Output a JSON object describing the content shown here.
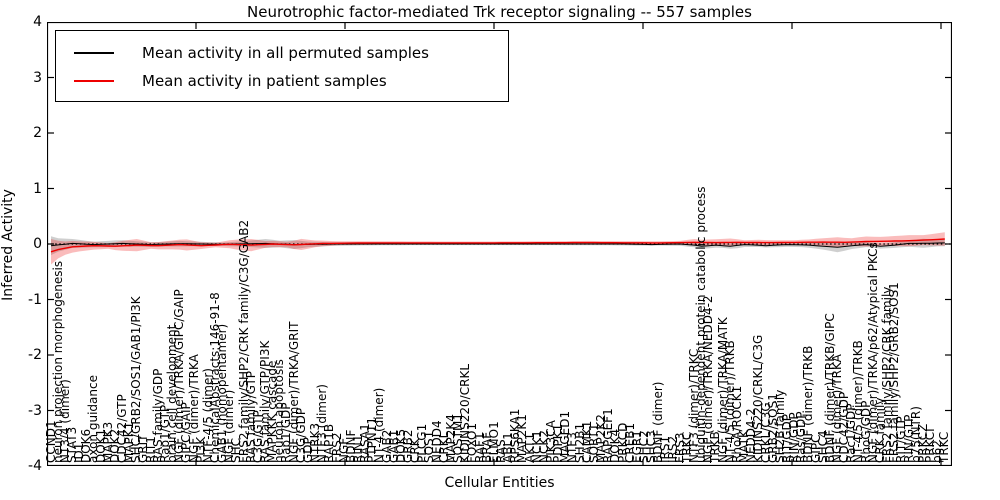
{
  "ui": {
    "title": "Neurotrophic factor-mediated Trk receptor signaling -- 557 samples",
    "xlabel": "Cellular Entities",
    "ylabel": "Inferred Activity"
  },
  "chart_data": {
    "type": "line",
    "title": "Neurotrophic factor-mediated Trk receptor signaling -- 557 samples",
    "samples_label": "557 samples",
    "xlabel": "Cellular Entities",
    "ylabel": "Inferred Activity",
    "ylim": [
      -4,
      4
    ],
    "yticks": [
      4,
      3,
      2,
      1,
      0,
      -1,
      -2,
      -3,
      -4
    ],
    "grid": false,
    "zero_line": "black dotted",
    "legend_position": "upper left",
    "x_categories": [
      "CCND1",
      "neuron projection morphogenesis",
      "NT3/4 (dimer)",
      "STAT3",
      "ID1",
      "DOK6",
      "axon guidance",
      "DOK1",
      "MAPK3",
      "DOK2",
      "CDC42/GTP",
      "MAPK1",
      "SHC/GRB2/SOS1/GAB1/PI3K",
      "GRIT",
      "RIT1",
      "RAS family/GDP",
      "Rap1/GTP",
      "brain cell development",
      "NGF (dimer)/TRKA/GIPC/GAIP",
      "GIPC/GAIP",
      "NGF (dimer)/TRKA",
      "PI3K",
      "NTF-4/5 (dimer)",
      "ChemicalAbstracts:146-91-8",
      "GAB1 (homopentamer)",
      "NGF (dimer)",
      "SHC",
      "FRS2 family/SHP2/CRK family/C3G/GAB2",
      "RAS family/GTP",
      "C3G/GTP",
      "RAS family/GTP/PI3K",
      "MAPKKK cascade",
      "neuron apoptosis",
      "Rap1/GDP",
      "NGF (dimer)/TRKA/GRIT",
      "C3G/GDP",
      "GDP",
      "NTRK3",
      "NTF3 (dimer)",
      "RAP1B",
      "FRS2",
      "NGF",
      "BDNF",
      "RIN1",
      "RASA1",
      "PTPN11",
      "NT-4 (dimer)",
      "GAB2",
      "GAB1",
      "DOK5",
      "GRB2",
      "CRK",
      "PLCG1",
      "SOS1",
      "NEDD4",
      "CRKL",
      "MAP2K4",
      "SQSTM1",
      "KIDINS220/CRKL",
      "FOXO1",
      "RAF1",
      "BRAF",
      "ELMO1",
      "RAS",
      "ABL1",
      "RPS6KA1",
      "MAP2K1",
      "AKT1",
      "NCK1",
      "NCK2",
      "PIK3CA",
      "PDPK1",
      "MAGED1",
      "NTF3",
      "SH2B1",
      "CAMK1",
      "SORT1",
      "MAP2K2",
      "RAPGEF1",
      "DOK4",
      "PRKCD",
      "CREB1",
      "EGR1",
      "SHC2",
      "SHC3",
      "BDNF (dimer)",
      "IRS1",
      "IRS2",
      "FRS3",
      "TRKC",
      "NTF3 (dimer)/TRKC",
      "ubiquitin-dependent protein catabolic process",
      "NGF (dimer)/TRKA/NEDD4-2",
      "TRKB",
      "NGF (dimer)/TRKA/MATK",
      "NT-4/5 (dimer)/TRKB",
      "RhoA/ROCK1",
      "MATK",
      "NEDD4-2",
      "KIDINS220/CRKL/C3G",
      "CRKL/C3G",
      "GRB2/SOS1",
      "SH2B family",
      "RIT/GDP",
      "RIN/GDP",
      "Ras/GDP",
      "BDNF (dimer)/TRKB",
      "GIPC",
      "SHC4",
      "BDNF (dimer)/TRKB/GIPC",
      "NGF (dimer)/TRKA",
      "CDC42/GDP",
      "Rac1/GDP",
      "NT-4/5 (dimer)/TRKB",
      "RhoG/GDP",
      "NGF (dimer)/TRKA/p62/Atypical PKCs",
      "CRK family",
      "FRS2 family/SHP2/CRK family",
      "FRS2 family/SHP2/GRB2/SOS1",
      "RIT/GTP",
      "RIN/GTP",
      "p75(NTR)",
      "PRKCZ",
      "PRKCI",
      "p62",
      "TRKC"
    ],
    "series": [
      {
        "name": "Mean activity in all permuted samples",
        "color": "#000000",
        "width": 1,
        "keypoints": [
          [
            0,
            -0.03
          ],
          [
            3,
            0.01
          ],
          [
            6,
            -0.01
          ],
          [
            10,
            0.01
          ],
          [
            14,
            -0.01
          ],
          [
            18,
            0.005
          ],
          [
            24,
            -0.005
          ],
          [
            30,
            0.01
          ],
          [
            34,
            -0.01
          ],
          [
            40,
            0
          ],
          [
            55,
            0
          ],
          [
            70,
            0
          ],
          [
            80,
            0
          ],
          [
            84,
            -0.01
          ],
          [
            88,
            0
          ],
          [
            90,
            -0.02
          ],
          [
            91,
            -0.04
          ],
          [
            93,
            -0.02
          ],
          [
            95,
            -0.04
          ],
          [
            97,
            -0.01
          ],
          [
            100,
            -0.03
          ],
          [
            103,
            -0.01
          ],
          [
            106,
            -0.02
          ],
          [
            108,
            -0.04
          ],
          [
            110,
            -0.06
          ],
          [
            112,
            -0.03
          ],
          [
            114,
            -0.01
          ],
          [
            116,
            -0.04
          ],
          [
            118,
            -0.02
          ],
          [
            120,
            0.01
          ],
          [
            123,
            0.015
          ],
          [
            125,
            0.02
          ]
        ]
      },
      {
        "name": "Mean activity in patient samples",
        "color": "#ee0000",
        "width": 1.4,
        "keypoints": [
          [
            0,
            -0.14
          ],
          [
            1,
            -0.1
          ],
          [
            3,
            -0.05
          ],
          [
            6,
            -0.03
          ],
          [
            9,
            -0.04
          ],
          [
            12,
            -0.02
          ],
          [
            15,
            -0.03
          ],
          [
            18,
            -0.01
          ],
          [
            21,
            -0.03
          ],
          [
            25,
            -0.005
          ],
          [
            28,
            -0.02
          ],
          [
            31,
            0
          ],
          [
            34,
            -0.015
          ],
          [
            38,
            0.01
          ],
          [
            45,
            0.02
          ],
          [
            60,
            0.02
          ],
          [
            75,
            0.025
          ],
          [
            85,
            0.02
          ],
          [
            90,
            0.03
          ],
          [
            93,
            0.025
          ],
          [
            96,
            0.03
          ],
          [
            100,
            0.025
          ],
          [
            105,
            0.03
          ],
          [
            108,
            0.035
          ],
          [
            111,
            0.03
          ],
          [
            114,
            0.045
          ],
          [
            117,
            0.05
          ],
          [
            120,
            0.06
          ],
          [
            123,
            0.075
          ],
          [
            125,
            0.09
          ]
        ]
      }
    ],
    "bands": [
      {
        "name": "permuted samples spread",
        "color": "#808080",
        "opacity": 0.38,
        "series": 0,
        "half_width_keypoints": [
          [
            0,
            0.17
          ],
          [
            1,
            0.12
          ],
          [
            3,
            0.08
          ],
          [
            6,
            0.05
          ],
          [
            9,
            0.06
          ],
          [
            12,
            0.05
          ],
          [
            15,
            0.04
          ],
          [
            18,
            0.05
          ],
          [
            21,
            0.04
          ],
          [
            24,
            0.03
          ],
          [
            27,
            0.05
          ],
          [
            30,
            0.08
          ],
          [
            32,
            0.06
          ],
          [
            34,
            0.08
          ],
          [
            36,
            0.05
          ],
          [
            40,
            0.03
          ],
          [
            50,
            0.02
          ],
          [
            60,
            0.02
          ],
          [
            70,
            0.02
          ],
          [
            80,
            0.025
          ],
          [
            85,
            0.02
          ],
          [
            90,
            0.04
          ],
          [
            92,
            0.05
          ],
          [
            94,
            0.04
          ],
          [
            96,
            0.05
          ],
          [
            99,
            0.03
          ],
          [
            102,
            0.04
          ],
          [
            105,
            0.04
          ],
          [
            108,
            0.06
          ],
          [
            110,
            0.09
          ],
          [
            112,
            0.06
          ],
          [
            115,
            0.04
          ],
          [
            118,
            0.05
          ],
          [
            120,
            0.06
          ],
          [
            122,
            0.08
          ],
          [
            124,
            0.06
          ],
          [
            125,
            0.06
          ]
        ]
      },
      {
        "name": "patient samples spread",
        "color": "#ee2222",
        "opacity": 0.3,
        "series": 1,
        "half_width_keypoints": [
          [
            0,
            0.23
          ],
          [
            1,
            0.16
          ],
          [
            2,
            0.12
          ],
          [
            4,
            0.09
          ],
          [
            6,
            0.07
          ],
          [
            8,
            0.05
          ],
          [
            10,
            0.09
          ],
          [
            12,
            0.11
          ],
          [
            14,
            0.06
          ],
          [
            17,
            0.08
          ],
          [
            19,
            0.1
          ],
          [
            21,
            0.06
          ],
          [
            23,
            0.04
          ],
          [
            26,
            0.09
          ],
          [
            28,
            0.11
          ],
          [
            30,
            0.06
          ],
          [
            33,
            0.05
          ],
          [
            35,
            0.1
          ],
          [
            37,
            0.06
          ],
          [
            40,
            0.035
          ],
          [
            45,
            0.03
          ],
          [
            55,
            0.025
          ],
          [
            65,
            0.025
          ],
          [
            75,
            0.03
          ],
          [
            80,
            0.03
          ],
          [
            88,
            0.03
          ],
          [
            90,
            0.06
          ],
          [
            91,
            0.05
          ],
          [
            93,
            0.06
          ],
          [
            95,
            0.07
          ],
          [
            97,
            0.04
          ],
          [
            99,
            0.05
          ],
          [
            101,
            0.04
          ],
          [
            104,
            0.04
          ],
          [
            106,
            0.05
          ],
          [
            108,
            0.07
          ],
          [
            110,
            0.09
          ],
          [
            112,
            0.07
          ],
          [
            114,
            0.09
          ],
          [
            116,
            0.08
          ],
          [
            118,
            0.09
          ],
          [
            120,
            0.1
          ],
          [
            122,
            0.09
          ],
          [
            124,
            0.11
          ],
          [
            125,
            0.12
          ]
        ]
      }
    ]
  }
}
